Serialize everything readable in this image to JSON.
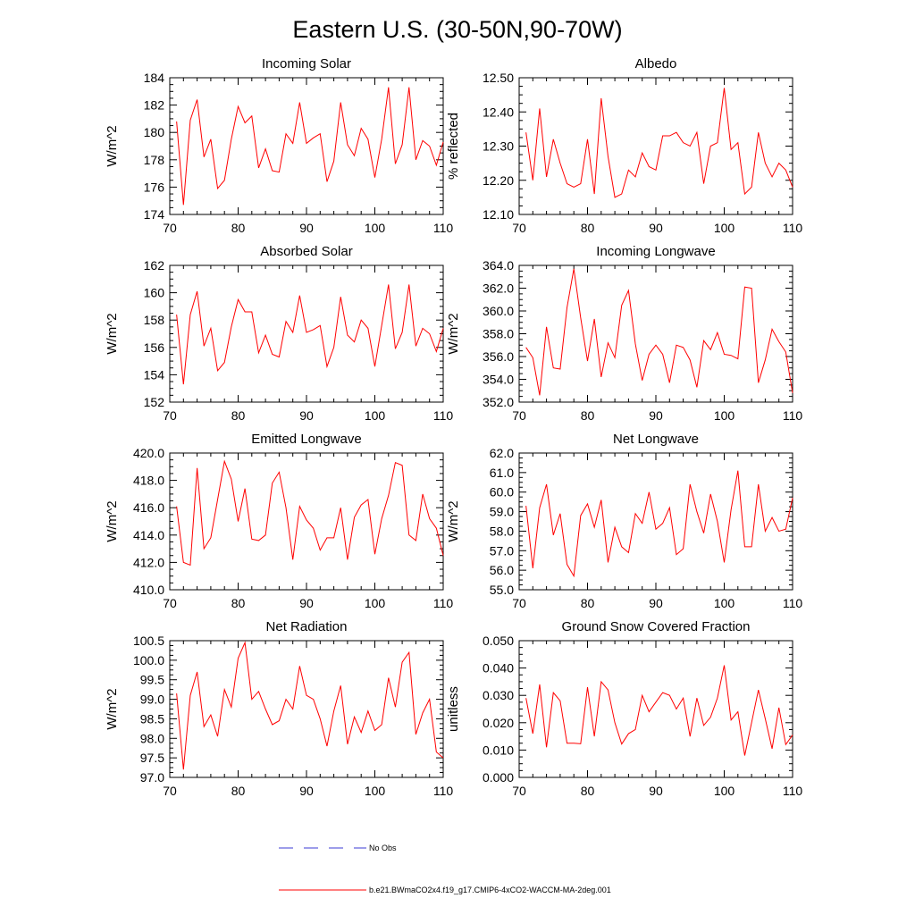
{
  "title": "Eastern U.S. (30-50N,90-70W)",
  "colors": {
    "model": "#ff0000",
    "obs": "#3b3bd6",
    "axis": "#000000"
  },
  "legend": {
    "obs_label": "No Obs",
    "model_label": "b.e21.BWmaCO2x4.f19_g17.CMIP6-4xCO2-WACCM-MA-2deg.001"
  },
  "chart_data": [
    {
      "type": "line",
      "title": "Incoming Solar",
      "ylabel": "W/m^2",
      "xlim": [
        70,
        110
      ],
      "xticks": [
        "70",
        "80",
        "90",
        "100",
        "110"
      ],
      "ylim": [
        174,
        184
      ],
      "yticks": [
        "174",
        "176",
        "178",
        "180",
        "182",
        "184"
      ],
      "start_year": 71,
      "values": [
        180.8,
        174.7,
        180.9,
        182.4,
        178.2,
        179.5,
        175.9,
        176.5,
        179.5,
        181.9,
        180.7,
        181.2,
        177.4,
        178.8,
        177.2,
        177.1,
        179.9,
        179.2,
        182.2,
        179.2,
        179.6,
        179.9,
        176.4,
        177.9,
        182.2,
        179.1,
        178.3,
        180.3,
        179.5,
        176.7,
        179.5,
        183.3,
        177.7,
        179.1,
        183.3,
        178.0,
        179.4,
        179.0,
        177.6,
        179.3
      ]
    },
    {
      "type": "line",
      "title": "Albedo",
      "ylabel": "% reflected",
      "xlim": [
        70,
        110
      ],
      "xticks": [
        "70",
        "80",
        "90",
        "100",
        "110"
      ],
      "ylim": [
        12.1,
        12.5
      ],
      "yticks": [
        "12.10",
        "12.20",
        "12.30",
        "12.40",
        "12.50"
      ],
      "start_year": 71,
      "values": [
        12.34,
        12.2,
        12.41,
        12.21,
        12.32,
        12.25,
        12.19,
        12.18,
        12.19,
        12.32,
        12.16,
        12.44,
        12.27,
        12.15,
        12.16,
        12.23,
        12.21,
        12.28,
        12.24,
        12.23,
        12.33,
        12.33,
        12.34,
        12.31,
        12.3,
        12.34,
        12.19,
        12.3,
        12.31,
        12.47,
        12.29,
        12.31,
        12.16,
        12.18,
        12.34,
        12.25,
        12.21,
        12.25,
        12.23,
        12.18
      ]
    },
    {
      "type": "line",
      "title": "Absorbed Solar",
      "ylabel": "W/m^2",
      "xlim": [
        70,
        110
      ],
      "xticks": [
        "70",
        "80",
        "90",
        "100",
        "110"
      ],
      "ylim": [
        152,
        162
      ],
      "yticks": [
        "152",
        "154",
        "156",
        "158",
        "160",
        "162"
      ],
      "start_year": 71,
      "values": [
        158.4,
        153.3,
        158.4,
        160.1,
        156.1,
        157.4,
        154.3,
        154.9,
        157.5,
        159.5,
        158.6,
        158.6,
        155.6,
        156.9,
        155.5,
        155.3,
        157.9,
        157.1,
        159.8,
        157.1,
        157.3,
        157.6,
        154.6,
        156.0,
        159.7,
        156.9,
        156.4,
        158.0,
        157.4,
        154.6,
        157.6,
        160.6,
        155.9,
        157.1,
        160.6,
        156.1,
        157.4,
        157.0,
        155.7,
        157.4
      ]
    },
    {
      "type": "line",
      "title": "Incoming Longwave",
      "ylabel": "W/m^2",
      "xlim": [
        70,
        110
      ],
      "xticks": [
        "70",
        "80",
        "90",
        "100",
        "110"
      ],
      "ylim": [
        352,
        364
      ],
      "yticks": [
        "352.0",
        "354.0",
        "356.0",
        "358.0",
        "360.0",
        "362.0",
        "364.0"
      ],
      "start_year": 71,
      "values": [
        356.8,
        355.9,
        352.6,
        358.6,
        355.0,
        354.9,
        360.3,
        363.7,
        359.4,
        355.6,
        359.3,
        354.2,
        357.2,
        355.9,
        360.5,
        361.8,
        357.1,
        353.9,
        356.2,
        357.0,
        356.2,
        353.7,
        357.0,
        356.8,
        355.7,
        353.3,
        357.4,
        356.6,
        358.1,
        356.2,
        356.1,
        355.8,
        362.1,
        362.0,
        353.7,
        355.7,
        358.4,
        357.3,
        356.4,
        352.8
      ]
    },
    {
      "type": "line",
      "title": "Emitted Longwave",
      "ylabel": "W/m^2",
      "xlim": [
        70,
        110
      ],
      "xticks": [
        "70",
        "80",
        "90",
        "100",
        "110"
      ],
      "ylim": [
        410,
        420
      ],
      "yticks": [
        "410.0",
        "412.0",
        "414.0",
        "416.0",
        "418.0",
        "420.0"
      ],
      "start_year": 71,
      "values": [
        416.1,
        412.0,
        411.8,
        418.9,
        413.0,
        413.8,
        416.6,
        419.4,
        418.1,
        415.0,
        417.4,
        413.7,
        413.6,
        414.0,
        417.8,
        418.6,
        416.0,
        412.2,
        416.1,
        415.1,
        414.5,
        412.9,
        413.8,
        413.8,
        416.0,
        412.2,
        415.3,
        416.2,
        416.6,
        412.6,
        415.2,
        416.9,
        419.3,
        419.1,
        414.0,
        413.6,
        417.0,
        415.2,
        414.5,
        412.5
      ]
    },
    {
      "type": "line",
      "title": "Net Longwave",
      "ylabel": "W/m^2",
      "xlim": [
        70,
        110
      ],
      "xticks": [
        "70",
        "80",
        "90",
        "100",
        "110"
      ],
      "ylim": [
        55,
        62
      ],
      "yticks": [
        "55.0",
        "56.0",
        "57.0",
        "58.0",
        "59.0",
        "60.0",
        "61.0",
        "62.0"
      ],
      "start_year": 71,
      "values": [
        59.3,
        56.1,
        59.2,
        60.4,
        57.8,
        58.9,
        56.3,
        55.7,
        58.8,
        59.4,
        58.2,
        59.6,
        56.4,
        58.2,
        57.2,
        56.9,
        58.9,
        58.4,
        60.0,
        58.1,
        58.4,
        59.2,
        56.8,
        57.1,
        60.4,
        59.0,
        57.9,
        59.9,
        58.5,
        56.4,
        59.1,
        61.1,
        57.2,
        57.2,
        60.4,
        58.0,
        58.7,
        58.0,
        58.1,
        59.7
      ]
    },
    {
      "type": "line",
      "title": "Net Radiation",
      "ylabel": "W/m^2",
      "xlim": [
        70,
        110
      ],
      "xticks": [
        "70",
        "80",
        "90",
        "100",
        "110"
      ],
      "ylim": [
        97,
        100.5
      ],
      "yticks": [
        "97.0",
        "97.5",
        "98.0",
        "98.5",
        "99.0",
        "99.5",
        "100.0",
        "100.5"
      ],
      "start_year": 71,
      "values": [
        99.15,
        97.2,
        99.1,
        99.7,
        98.3,
        98.6,
        98.05,
        99.25,
        98.8,
        100.05,
        100.45,
        99.0,
        99.2,
        98.75,
        98.35,
        98.45,
        99.0,
        98.75,
        99.85,
        99.1,
        99.0,
        98.5,
        97.8,
        98.7,
        99.35,
        97.85,
        98.55,
        98.15,
        98.7,
        98.2,
        98.35,
        99.55,
        98.8,
        99.95,
        100.2,
        98.1,
        98.65,
        99.0,
        97.65,
        97.5
      ]
    },
    {
      "type": "line",
      "title": "Ground Snow Covered Fraction",
      "ylabel": "unitless",
      "xlim": [
        70,
        110
      ],
      "xticks": [
        "70",
        "80",
        "90",
        "100",
        "110"
      ],
      "ylim": [
        0,
        0.05
      ],
      "yticks": [
        "0.000",
        "0.010",
        "0.020",
        "0.030",
        "0.040",
        "0.050"
      ],
      "start_year": 71,
      "values": [
        0.029,
        0.016,
        0.034,
        0.011,
        0.031,
        0.028,
        0.0125,
        0.0125,
        0.0123,
        0.033,
        0.015,
        0.035,
        0.032,
        0.02,
        0.0122,
        0.016,
        0.0175,
        0.03,
        0.024,
        0.0275,
        0.031,
        0.03,
        0.025,
        0.029,
        0.015,
        0.029,
        0.019,
        0.022,
        0.029,
        0.041,
        0.021,
        0.024,
        0.008,
        0.02,
        0.032,
        0.0215,
        0.0105,
        0.0255,
        0.012,
        0.0155
      ]
    }
  ]
}
